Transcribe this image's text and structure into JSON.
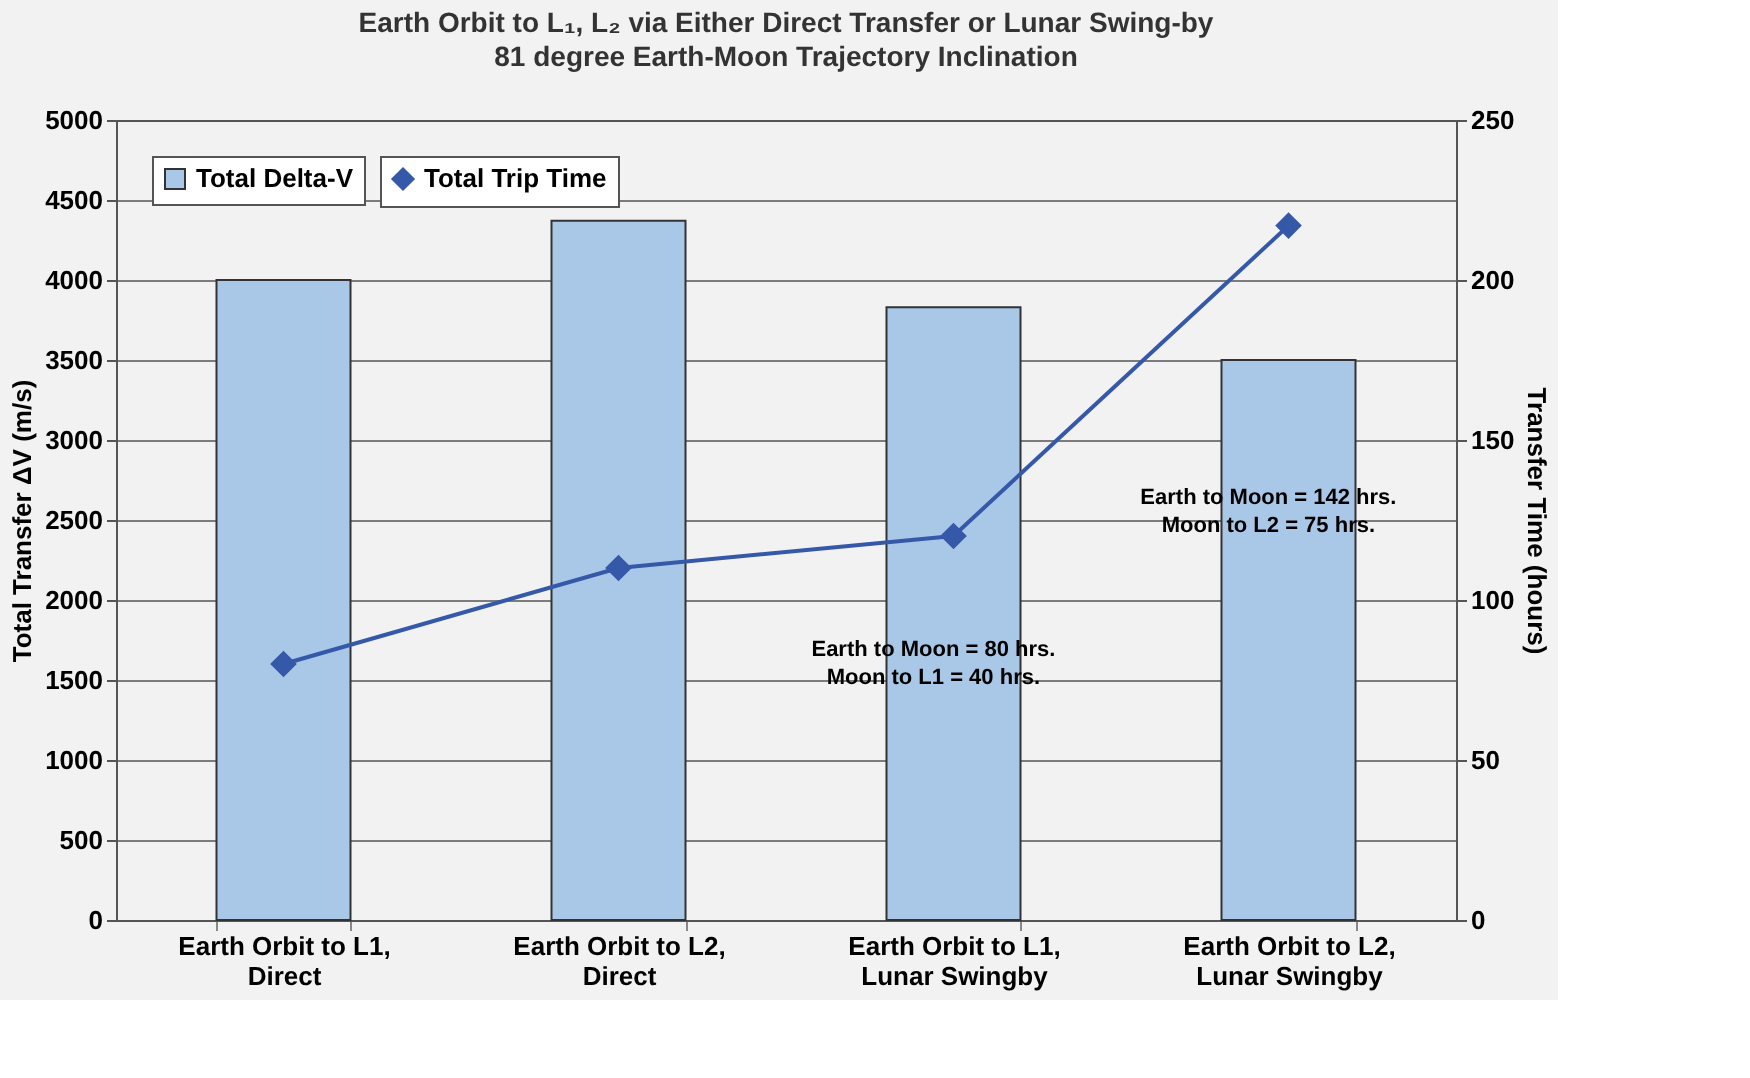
{
  "chart_data": {
    "type": "bar",
    "title": "Earth Orbit to L₁, L₂ via Either Direct Transfer or Lunar Swing-by",
    "subtitle": "81 degree Earth-Moon Trajectory Inclination",
    "categories": [
      "Earth Orbit to L1, Direct",
      "Earth Orbit to L2, Direct",
      "Earth Orbit to L1, Lunar Swingby",
      "Earth Orbit to L2, Lunar Swingby"
    ],
    "series": [
      {
        "name": "Total Delta-V",
        "color": "#a9c8e8",
        "values": [
          4000,
          4370,
          3830,
          3500
        ]
      },
      {
        "name": "Total Trip Time",
        "type": "line",
        "axis": "y2",
        "color": "#3558a8",
        "marker": "diamond",
        "values": [
          80,
          110,
          120,
          217
        ]
      }
    ],
    "ylabel": "Total Transfer ΔV  (m/s)",
    "y2label": "Transfer Time  (hours)",
    "ylim": [
      0,
      5000
    ],
    "yticks": [
      0,
      500,
      1000,
      1500,
      2000,
      2500,
      3000,
      3500,
      4000,
      4500,
      5000
    ],
    "y2lim": [
      0,
      250
    ],
    "y2ticks": [
      0,
      50,
      100,
      150,
      200,
      250
    ],
    "grid": "y",
    "legend": "top left",
    "annotations": [
      "Earth to Moon = 80 hrs.\nMoon to L1 = 40 hrs.",
      "Earth to Moon = 142 hrs.\nMoon to L2 = 75 hrs."
    ]
  }
}
